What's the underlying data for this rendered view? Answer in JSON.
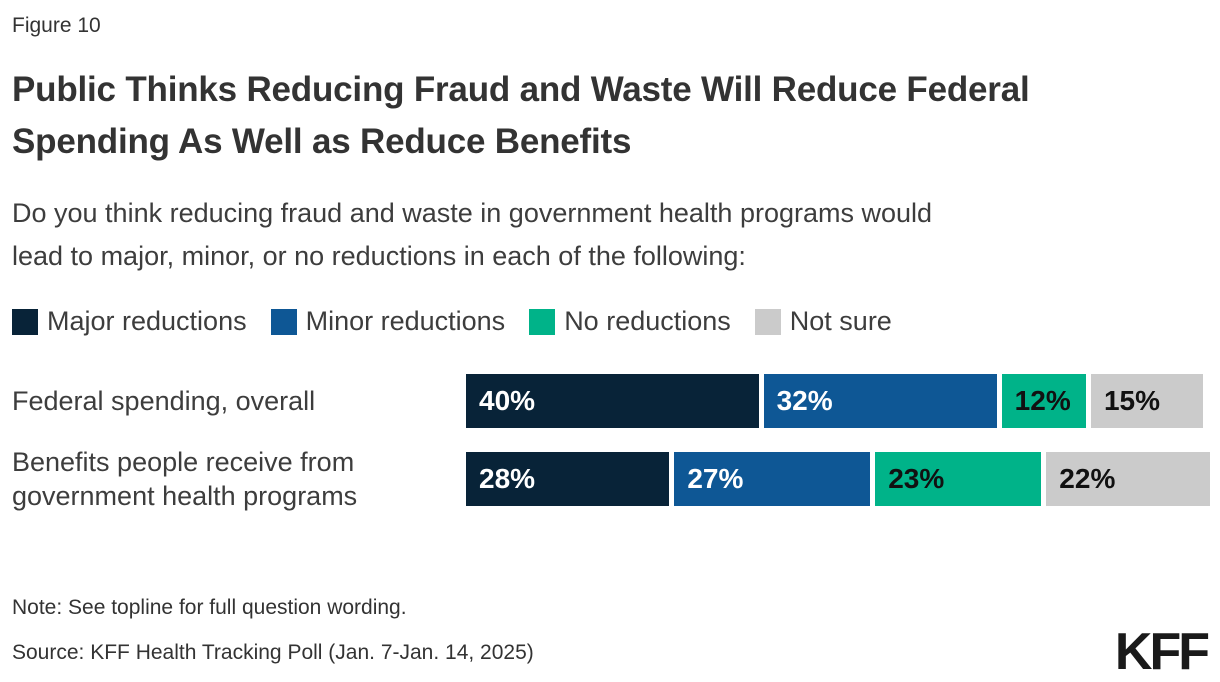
{
  "figure_label": "Figure 10",
  "title": {
    "line1": "Public Thinks Reducing Fraud and Waste Will Reduce Federal",
    "line2": "Spending As Well as Reduce Benefits"
  },
  "subtitle": {
    "line1": "Do you think reducing fraud and waste in government health programs would",
    "line2": "lead to major, minor, or no reductions in each of the following:"
  },
  "legend": {
    "items": [
      {
        "label": "Major reductions",
        "color": "#082338"
      },
      {
        "label": "Minor reductions",
        "color": "#0e5795"
      },
      {
        "label": "No reductions",
        "color": "#00b389"
      },
      {
        "label": "Not sure",
        "color": "#cbcbcb"
      }
    ]
  },
  "chart_data": {
    "type": "bar",
    "orientation": "horizontal",
    "stacked": true,
    "unit": "percent",
    "categories": [
      "Federal spending, overall",
      "Benefits people receive from government health programs"
    ],
    "series": [
      {
        "name": "Major reductions",
        "color": "#082338",
        "text_color": "#ffffff",
        "values": [
          40,
          28
        ]
      },
      {
        "name": "Minor reductions",
        "color": "#0e5795",
        "text_color": "#ffffff",
        "values": [
          32,
          27
        ]
      },
      {
        "name": "No reductions",
        "color": "#00b389",
        "text_color": "#111111",
        "values": [
          12,
          23
        ]
      },
      {
        "name": "Not sure",
        "color": "#cbcbcb",
        "text_color": "#111111",
        "values": [
          15,
          22
        ]
      }
    ],
    "value_label_format": "{v}%",
    "xlim": [
      0,
      100
    ],
    "grid": false,
    "legend_position": "top"
  },
  "note": "Note: See topline for full question wording.",
  "source": "Source: KFF Health Tracking Poll (Jan. 7-Jan. 14, 2025)",
  "logo": "KFF"
}
